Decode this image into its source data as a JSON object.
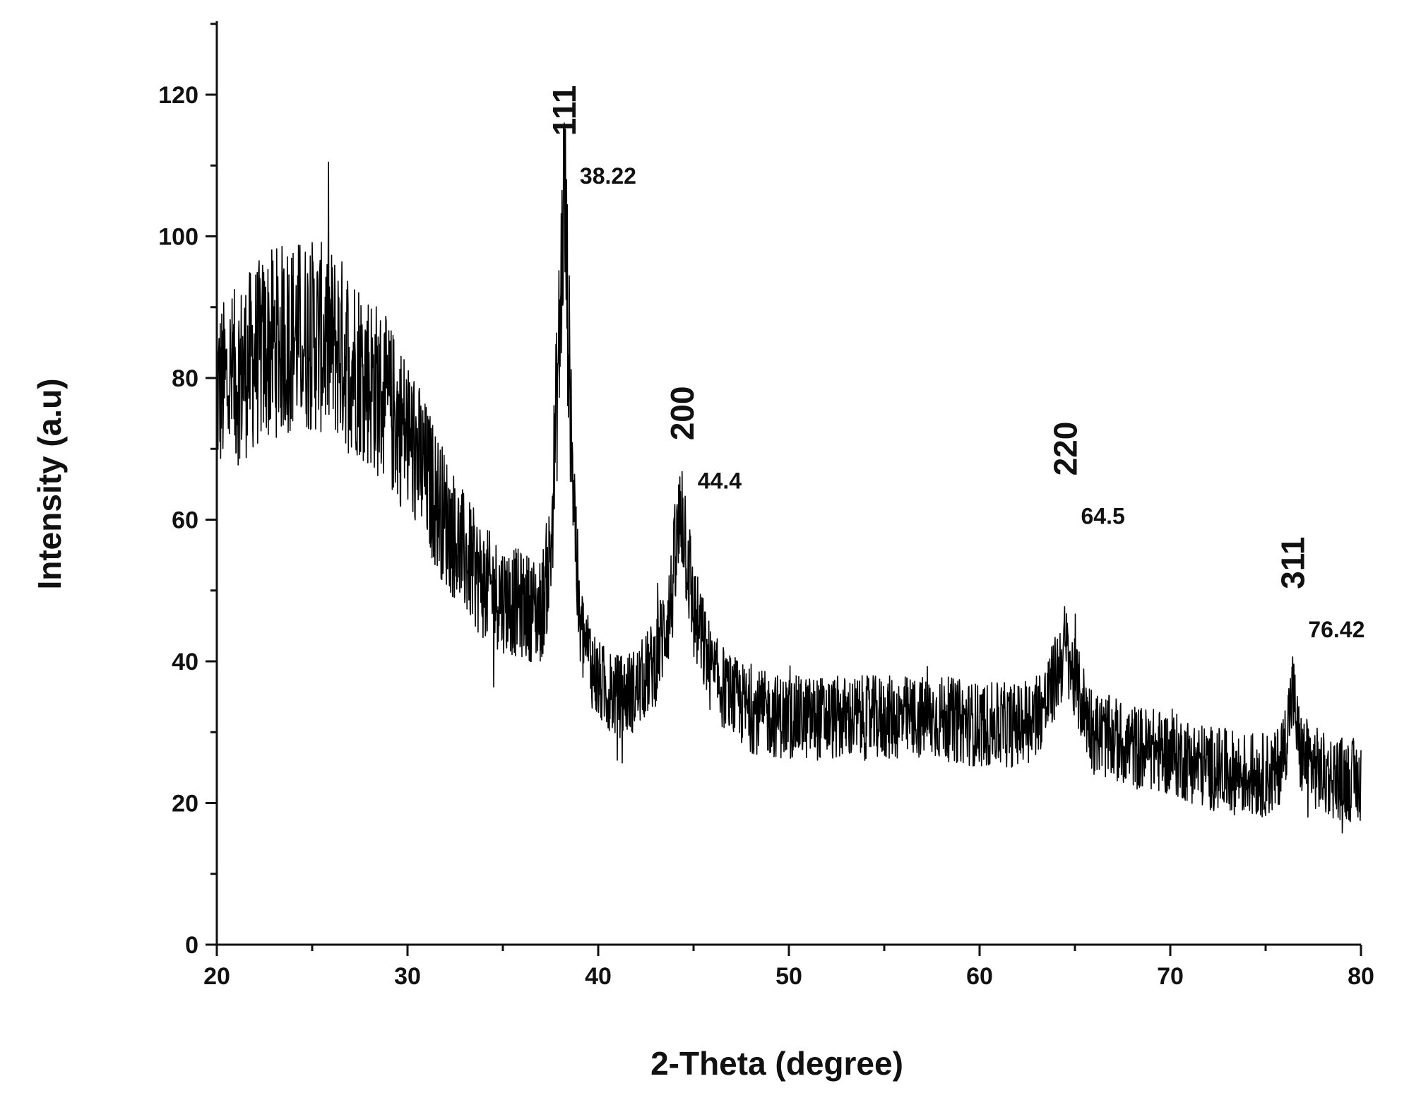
{
  "chart_data": {
    "type": "line",
    "title": "",
    "xlabel": "2-Theta (degree)",
    "ylabel": "Intensity (a.u)",
    "xlim": [
      20,
      80
    ],
    "ylim": [
      0,
      130
    ],
    "x_ticks": [
      20,
      30,
      40,
      50,
      60,
      70,
      80
    ],
    "x_tick_labels": [
      "20",
      "30",
      "40",
      "50",
      "60",
      "70",
      "80"
    ],
    "y_ticks": [
      0,
      20,
      40,
      60,
      80,
      100,
      120
    ],
    "y_tick_labels": [
      "0",
      "20",
      "40",
      "60",
      "80",
      "100",
      "120"
    ],
    "grid": false,
    "legend": "none",
    "line_color": "#000000",
    "series": [
      {
        "x": [
          20,
          21,
          22,
          23,
          24,
          25,
          26,
          27,
          28,
          29,
          30,
          31,
          32,
          33,
          34,
          35,
          36,
          37,
          37.5,
          38.0,
          38.22,
          38.5,
          39,
          40,
          41,
          42,
          43,
          43.8,
          44.4,
          45,
          46,
          47,
          48,
          50,
          52,
          55,
          58,
          60,
          62,
          63.5,
          64.0,
          64.5,
          65.0,
          66,
          68,
          70,
          72,
          74,
          75.5,
          76.0,
          76.42,
          76.8,
          78,
          80
        ],
        "y": [
          78,
          80,
          83,
          85,
          86,
          86,
          85,
          83,
          80,
          76,
          72,
          66,
          60,
          55,
          51,
          49,
          48,
          47,
          55,
          88,
          108,
          80,
          45,
          37,
          35,
          36,
          40,
          48,
          62,
          47,
          38,
          35,
          33,
          32,
          32,
          32,
          32,
          31,
          31,
          34,
          38,
          42,
          37,
          30,
          28,
          27,
          25,
          24,
          24,
          28,
          36,
          27,
          24,
          23
        ]
      }
    ],
    "annotations": [
      {
        "hkl": "111",
        "position": "38.22",
        "x": 38.22,
        "y": 112
      },
      {
        "hkl": "200",
        "position": "44.4",
        "x": 44.4,
        "y": 69
      },
      {
        "hkl": "220",
        "position": "64.5",
        "x": 64.5,
        "y": 64
      },
      {
        "hkl": "311",
        "position": "76.42",
        "x": 76.42,
        "y": 48
      }
    ]
  }
}
